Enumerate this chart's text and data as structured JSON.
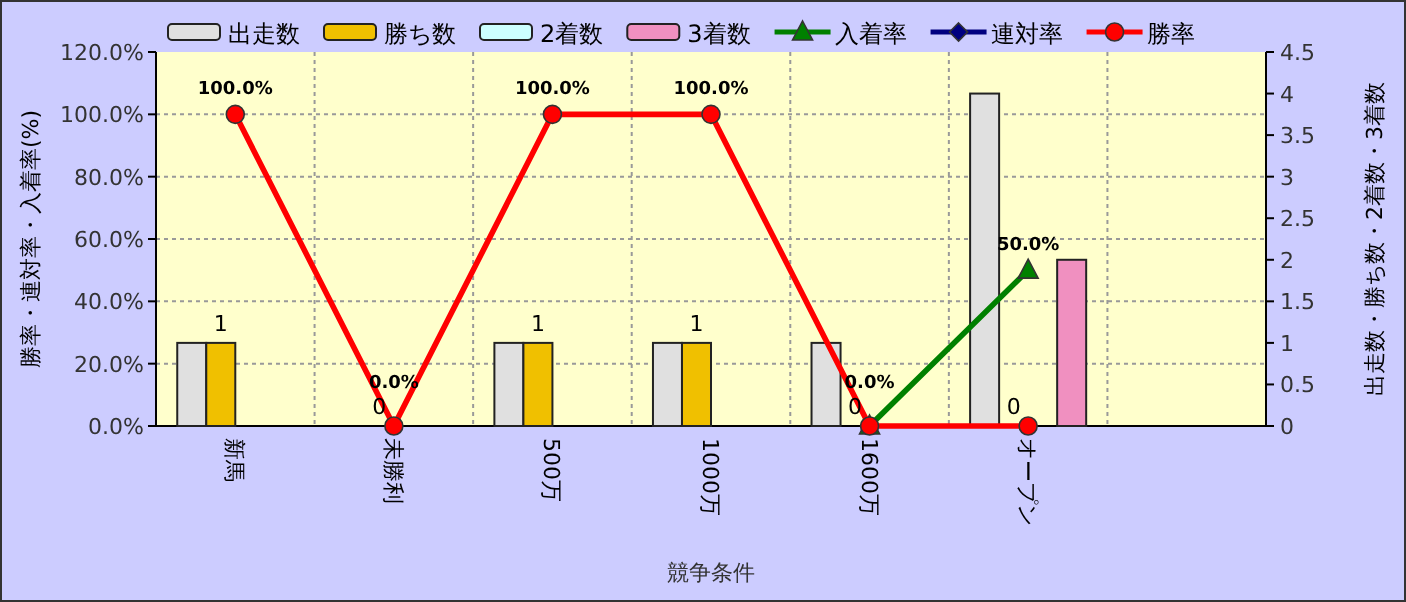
{
  "chart_data": {
    "type": "bar",
    "xlabel": "競争条件",
    "ylabel": "勝率・連対率・入着率(%)",
    "y2label": "出走数・勝ち数・2着数・3着数",
    "categories": [
      "新馬",
      "未勝利",
      "500万",
      "1000万",
      "1600万",
      "オープン",
      null
    ],
    "ylim": [
      0,
      120
    ],
    "yticks": [
      {
        "value": 0,
        "label": "0.0%"
      },
      {
        "value": 20,
        "label": "20.0%"
      },
      {
        "value": 40,
        "label": "40.0%"
      },
      {
        "value": 60,
        "label": "60.0%"
      },
      {
        "value": 80,
        "label": "80.0%"
      },
      {
        "value": 100,
        "label": "100.0%"
      },
      {
        "value": 120,
        "label": "120.0%"
      }
    ],
    "y2lim": [
      0,
      4.5
    ],
    "y2ticks": [
      0,
      0.5,
      1,
      1.5,
      2,
      2.5,
      3,
      3.5,
      4,
      4.5
    ],
    "grid": true,
    "legend": "top",
    "series": [
      {
        "name": "出走数",
        "axis": "y2",
        "color": "#e0e0e0",
        "values": [
          1,
          0,
          1,
          1,
          1,
          4,
          null
        ]
      },
      {
        "name": "勝ち数",
        "axis": "y2",
        "color": "#f0c000",
        "values": [
          1,
          0,
          1,
          1,
          0,
          0,
          null
        ],
        "value_labels": [
          "1",
          "0",
          "1",
          "1",
          "0",
          "0",
          null
        ]
      },
      {
        "name": "2着数",
        "axis": "y2",
        "color": "#ccffff",
        "values": [
          0,
          0,
          0,
          0,
          0,
          0,
          null
        ]
      },
      {
        "name": "3着数",
        "axis": "y2",
        "color": "#f090c0",
        "values": [
          0,
          0,
          0,
          0,
          0,
          2,
          null
        ]
      },
      {
        "name": "入着率",
        "type": "line",
        "color": "#008000",
        "marker": "triangle",
        "values": [
          null,
          null,
          null,
          null,
          0,
          50,
          null
        ],
        "value_labels": [
          null,
          null,
          null,
          null,
          null,
          "50.0%",
          null
        ]
      },
      {
        "name": "連対率",
        "type": "line",
        "color": "#000080",
        "marker": "diamond",
        "values": [
          null,
          null,
          null,
          null,
          null,
          null,
          null
        ]
      },
      {
        "name": "勝率",
        "type": "line",
        "color": "#ff0000",
        "marker": "circle",
        "values": [
          100,
          0,
          100,
          100,
          0,
          0,
          null
        ],
        "value_labels": [
          "100.0%",
          "0.0%",
          "100.0%",
          "100.0%",
          "0.0%",
          null,
          null
        ]
      }
    ]
  }
}
